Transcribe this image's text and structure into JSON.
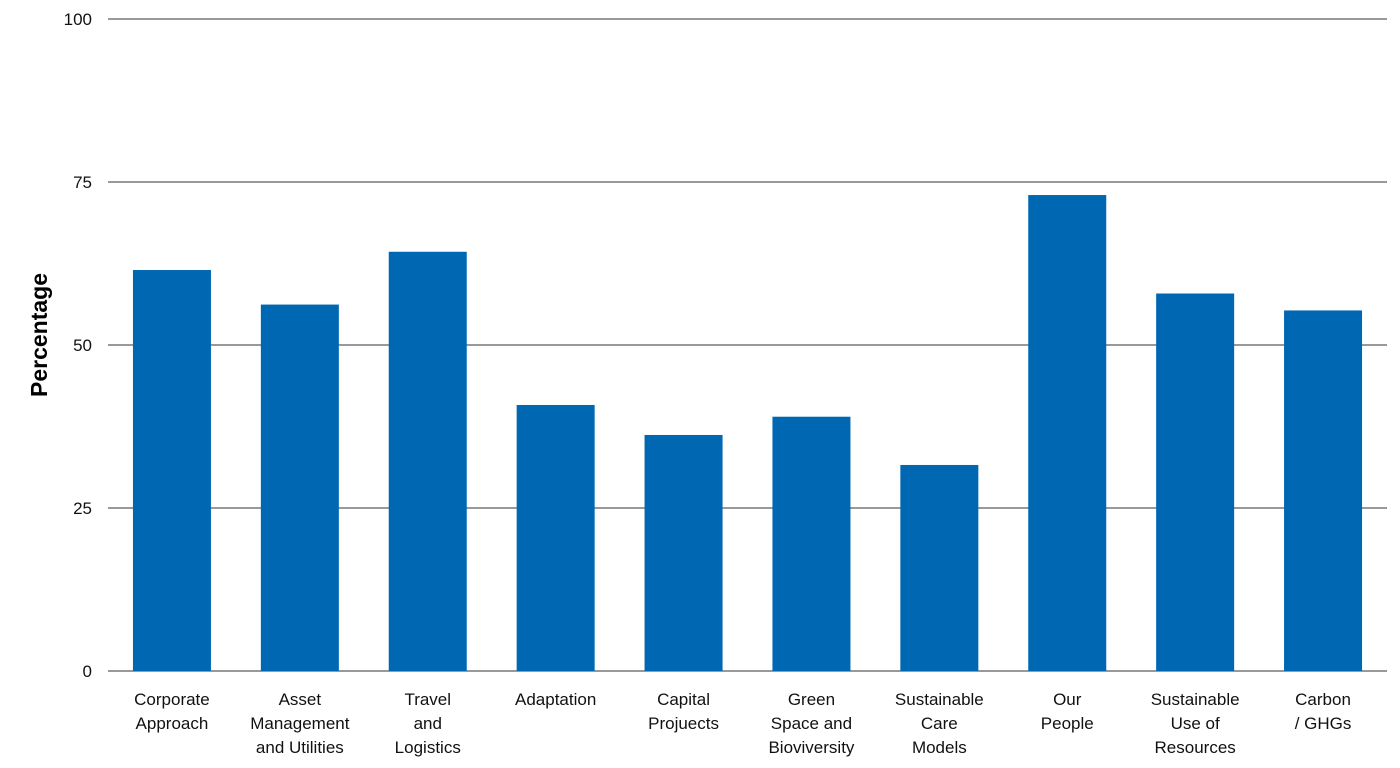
{
  "chart_data": {
    "type": "bar",
    "categories": [
      "Corporate Approach",
      "Asset Management and Utilities",
      "Travel and Logistics",
      "Adaptation",
      "Capital Projuects",
      "Green Space and Bioviversity",
      "Sustainable Care Models",
      "Our People",
      "Sustainable Use of Resources",
      "Carbon / GHGs"
    ],
    "category_label_lines": [
      [
        "Corporate",
        "Approach"
      ],
      [
        "Asset",
        "Management",
        "and Utilities"
      ],
      [
        "Travel",
        "and",
        "Logistics"
      ],
      [
        "Adaptation"
      ],
      [
        "Capital",
        "Projuects"
      ],
      [
        "Green",
        "Space and",
        "Bioviversity"
      ],
      [
        "Sustainable",
        "Care",
        "Models"
      ],
      [
        "Our",
        "People"
      ],
      [
        "Sustainable",
        "Use of",
        "Resources"
      ],
      [
        "Carbon",
        "/ GHGs"
      ]
    ],
    "values": [
      61.5,
      56.2,
      64.3,
      40.8,
      36.2,
      39,
      31.6,
      73,
      57.9,
      55.3
    ],
    "ylabel": "Percentage",
    "xlabel": "",
    "ylim": [
      0,
      100
    ],
    "yticks": [
      "0",
      "25",
      "50",
      "75",
      "100"
    ],
    "grid": true,
    "bar_color": "#0068b3"
  }
}
